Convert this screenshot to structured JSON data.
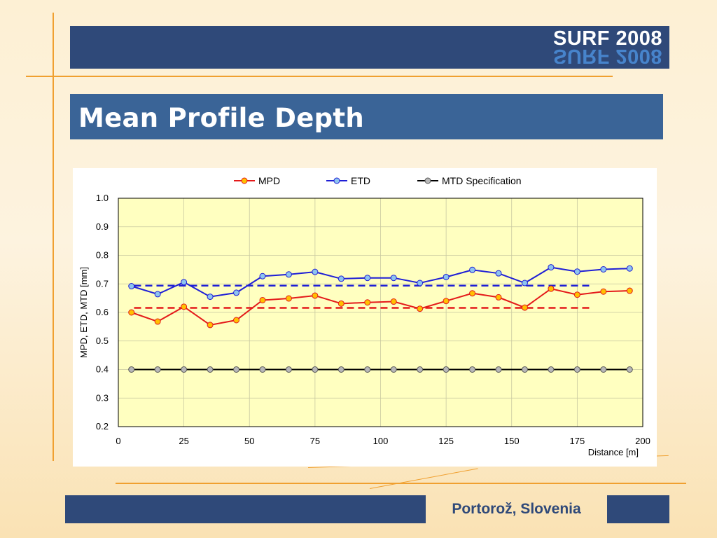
{
  "header": {
    "logo": "SURF 2008"
  },
  "title": "Mean Profile Depth",
  "footer": {
    "location": "Portorož, Slovenia"
  },
  "colors": {
    "mpd": "#e41a1a",
    "mpd_marker": "#ffc000",
    "etd": "#1f1fd6",
    "etd_marker": "#8ec4ee",
    "mtd": "#000000",
    "mtd_marker": "#b8b8b8",
    "plot_bg": "#ffffc0"
  },
  "chart_data": {
    "type": "line",
    "xlabel": "Distance [m]",
    "ylabel": "MPD, ETD, MTD [mm]",
    "xlim": [
      0,
      200
    ],
    "ylim": [
      0.2,
      1.0
    ],
    "xticks": [
      "0",
      "25",
      "50",
      "75",
      "100",
      "125",
      "150",
      "175",
      "200"
    ],
    "yticks": [
      "0.2",
      "0.3",
      "0.4",
      "0.5",
      "0.6",
      "0.7",
      "0.8",
      "0.9",
      "1.0"
    ],
    "grid": true,
    "legend_position": "top",
    "x": [
      5,
      15,
      25,
      35,
      45,
      55,
      65,
      75,
      85,
      95,
      105,
      115,
      125,
      135,
      145,
      155,
      165,
      175,
      185,
      195
    ],
    "series": [
      {
        "name": "MPD",
        "values": [
          0.6,
          0.568,
          0.62,
          0.556,
          0.573,
          0.643,
          0.649,
          0.659,
          0.631,
          0.635,
          0.638,
          0.613,
          0.64,
          0.667,
          0.653,
          0.617,
          0.683,
          0.662,
          0.673,
          0.676
        ]
      },
      {
        "name": "ETD",
        "values": [
          0.692,
          0.664,
          0.706,
          0.655,
          0.669,
          0.727,
          0.733,
          0.742,
          0.718,
          0.721,
          0.721,
          0.703,
          0.724,
          0.749,
          0.737,
          0.703,
          0.758,
          0.743,
          0.751,
          0.754
        ]
      },
      {
        "name": "MTD Specification",
        "values": [
          0.4,
          0.4,
          0.4,
          0.4,
          0.4,
          0.4,
          0.4,
          0.4,
          0.4,
          0.4,
          0.4,
          0.4,
          0.4,
          0.4,
          0.4,
          0.4,
          0.4,
          0.4,
          0.4,
          0.4
        ]
      }
    ],
    "mean_lines": [
      {
        "series": "MPD",
        "value": 0.616,
        "x_range": [
          6,
          180
        ]
      },
      {
        "series": "ETD",
        "value": 0.694,
        "x_range": [
          6,
          180
        ]
      }
    ]
  }
}
